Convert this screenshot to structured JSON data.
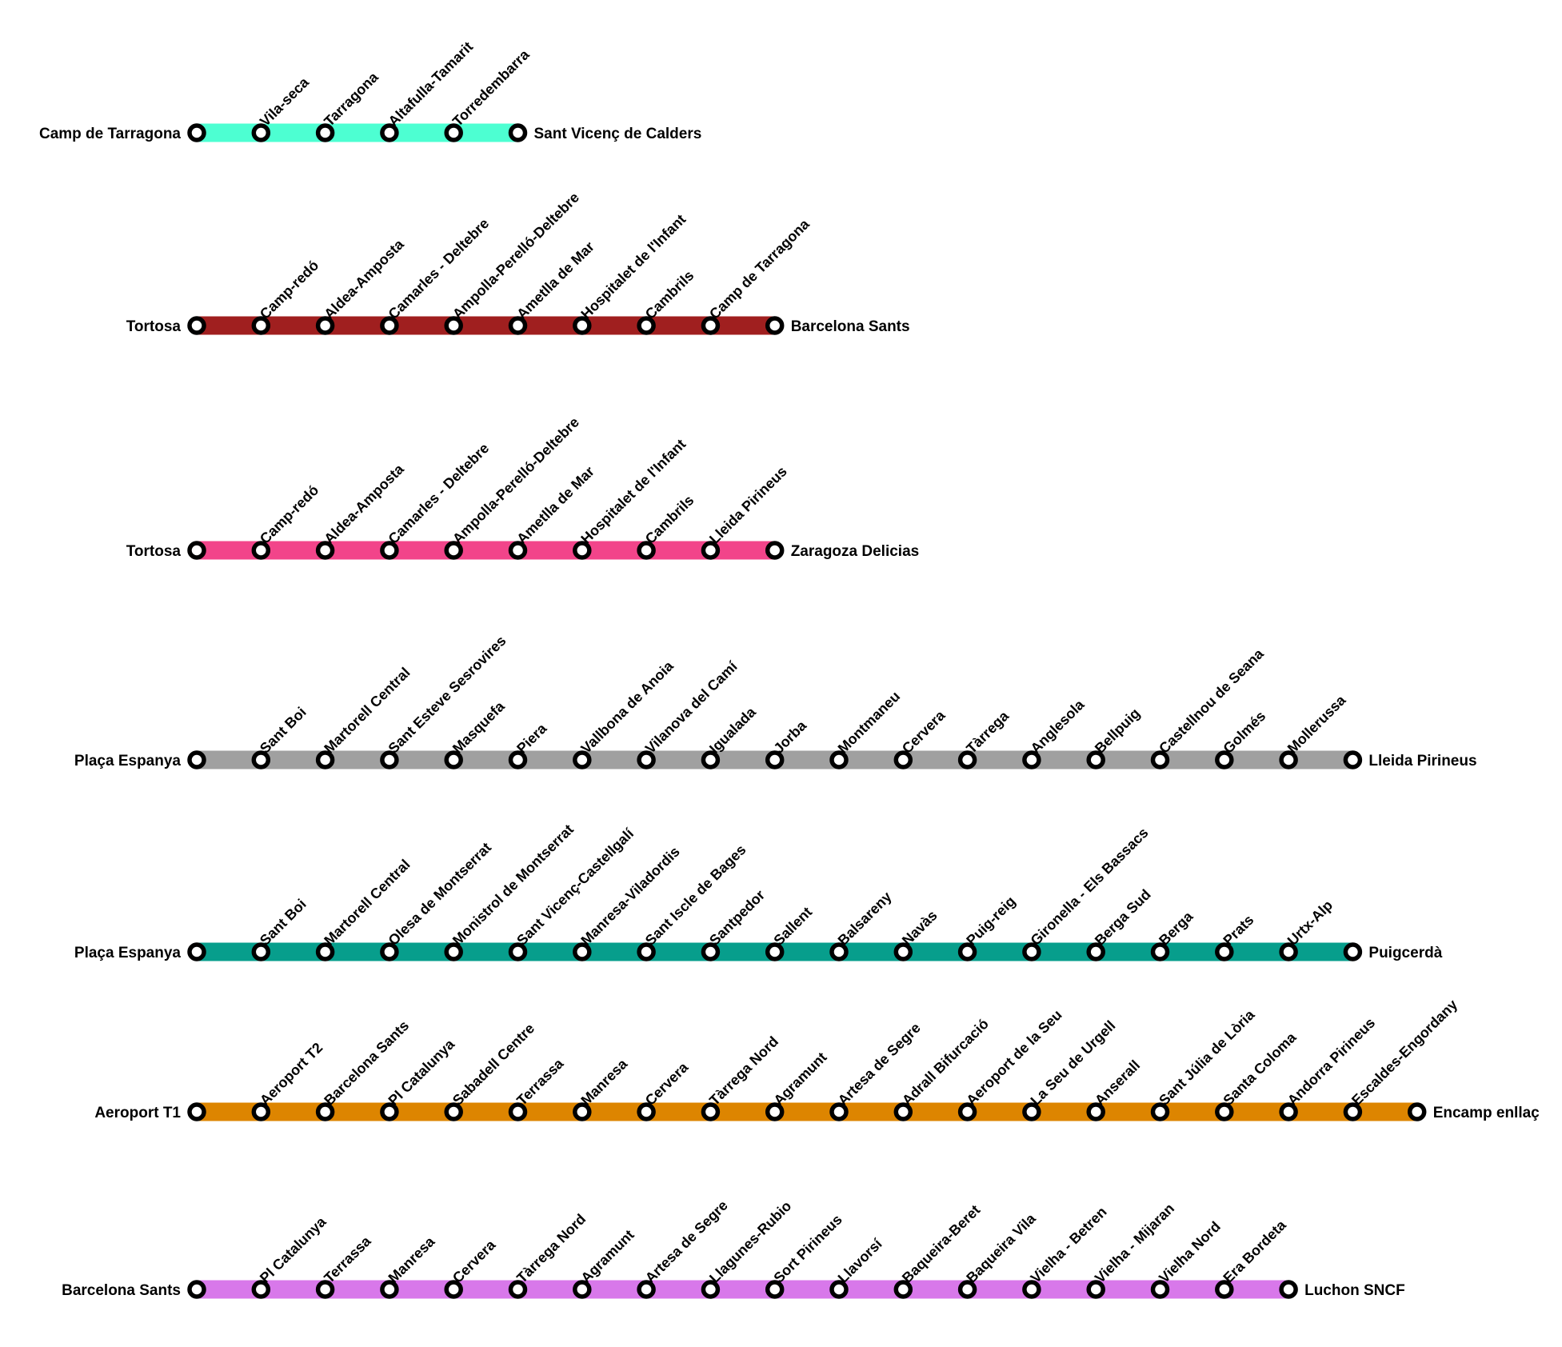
{
  "colors": {
    "station_fill": "#ffffff",
    "station_stroke": "#000000",
    "text": "#000000",
    "background": "#ffffff"
  },
  "lines": [
    {
      "color": "#4dffd2",
      "start": "Camp de Tarragona",
      "end": "Sant Vicenç de Calders",
      "stops": [
        "Vila-seca",
        "Tarragona",
        "Altafulla-Tamarit",
        "Torredembarra"
      ]
    },
    {
      "color": "#a01f1f",
      "start": "Tortosa",
      "end": "Barcelona Sants",
      "stops": [
        "Camp-redó",
        "Aldea-Amposta",
        "Camarles - Deltebre",
        "Ampolla-Perelló-Deltebre",
        "Ametlla de Mar",
        "Hospitalet de l'Infant",
        "Cambrils",
        "Camp de Tarragona"
      ]
    },
    {
      "color": "#f2448a",
      "start": "Tortosa",
      "end": "Zaragoza Delicias",
      "stops": [
        "Camp-redó",
        "Aldea-Amposta",
        "Camarles - Deltebre",
        "Ampolla-Perelló-Deltebre",
        "Ametlla de Mar",
        "Hospitalet de l'Infant",
        "Cambrils",
        "Lleida Pirineus"
      ]
    },
    {
      "color": "#a0a0a0",
      "start": "Plaça Espanya",
      "end": "Lleida Pirineus",
      "stops": [
        "Sant Boi",
        "Martorell Central",
        "Sant Esteve Sesrovires",
        "Masquefa",
        "Piera",
        "Vallbona de Anoia",
        "Vilanova del Camí",
        "Igualada",
        "Jorba",
        "Montmaneu",
        "Cervera",
        "Tàrrega",
        "Anglesola",
        "Bellpuig",
        "Castellnou de Seana",
        "Golmés",
        "Mollerussa"
      ]
    },
    {
      "color": "#079e8c",
      "start": "Plaça Espanya",
      "end": "Puigcerdà",
      "stops": [
        "Sant Boi",
        "Martorell Central",
        "Olesa de Montserrat",
        "Monistrol de Montserrat",
        "Sant Vicenç-Castellgalí",
        "Manresa-Viladordis",
        "Sant Iscle de Bages",
        "Santpedor",
        "Sallent",
        "Balsareny",
        "Navàs",
        "Puig-reig",
        "Gironella - Els Bassacs",
        "Berga Sud",
        "Berga",
        "Prats",
        "Urtx-Alp"
      ]
    },
    {
      "color": "#dd8500",
      "start": "Aeroport T1",
      "end": "Encamp enllaç",
      "stops": [
        "Aeroport T2",
        "Barcelona Sants",
        "Pl Catalunya",
        "Sabadell Centre",
        "Terrassa",
        "Manresa",
        "Cervera",
        "Tàrrega Nord",
        "Agramunt",
        "Artesa de Segre",
        "Adrall Bifurcació",
        "Aeroport de la Seu",
        "La Seu de Urgell",
        "Anserall",
        "Sant Júlia de Lòria",
        "Santa Coloma",
        "Andorra Pirineus",
        "Escaldes-Engordany"
      ]
    },
    {
      "color": "#d878ea",
      "start": "Barcelona Sants",
      "end": "Luchon SNCF",
      "stops": [
        "Pl Catalunya",
        "Terrassa",
        "Manresa",
        "Cervera",
        "Tàrrega Nord",
        "Agramunt",
        "Artesa de Segre",
        "Llagunes-Rubio",
        "Sort Pirineus",
        "Llavorsí",
        "Baqueira-Beret",
        "Baqueira Vila",
        "Vielha - Betren",
        "Vielha - Mijaran",
        "Vielha Nord",
        "Era Bordeta"
      ]
    }
  ]
}
